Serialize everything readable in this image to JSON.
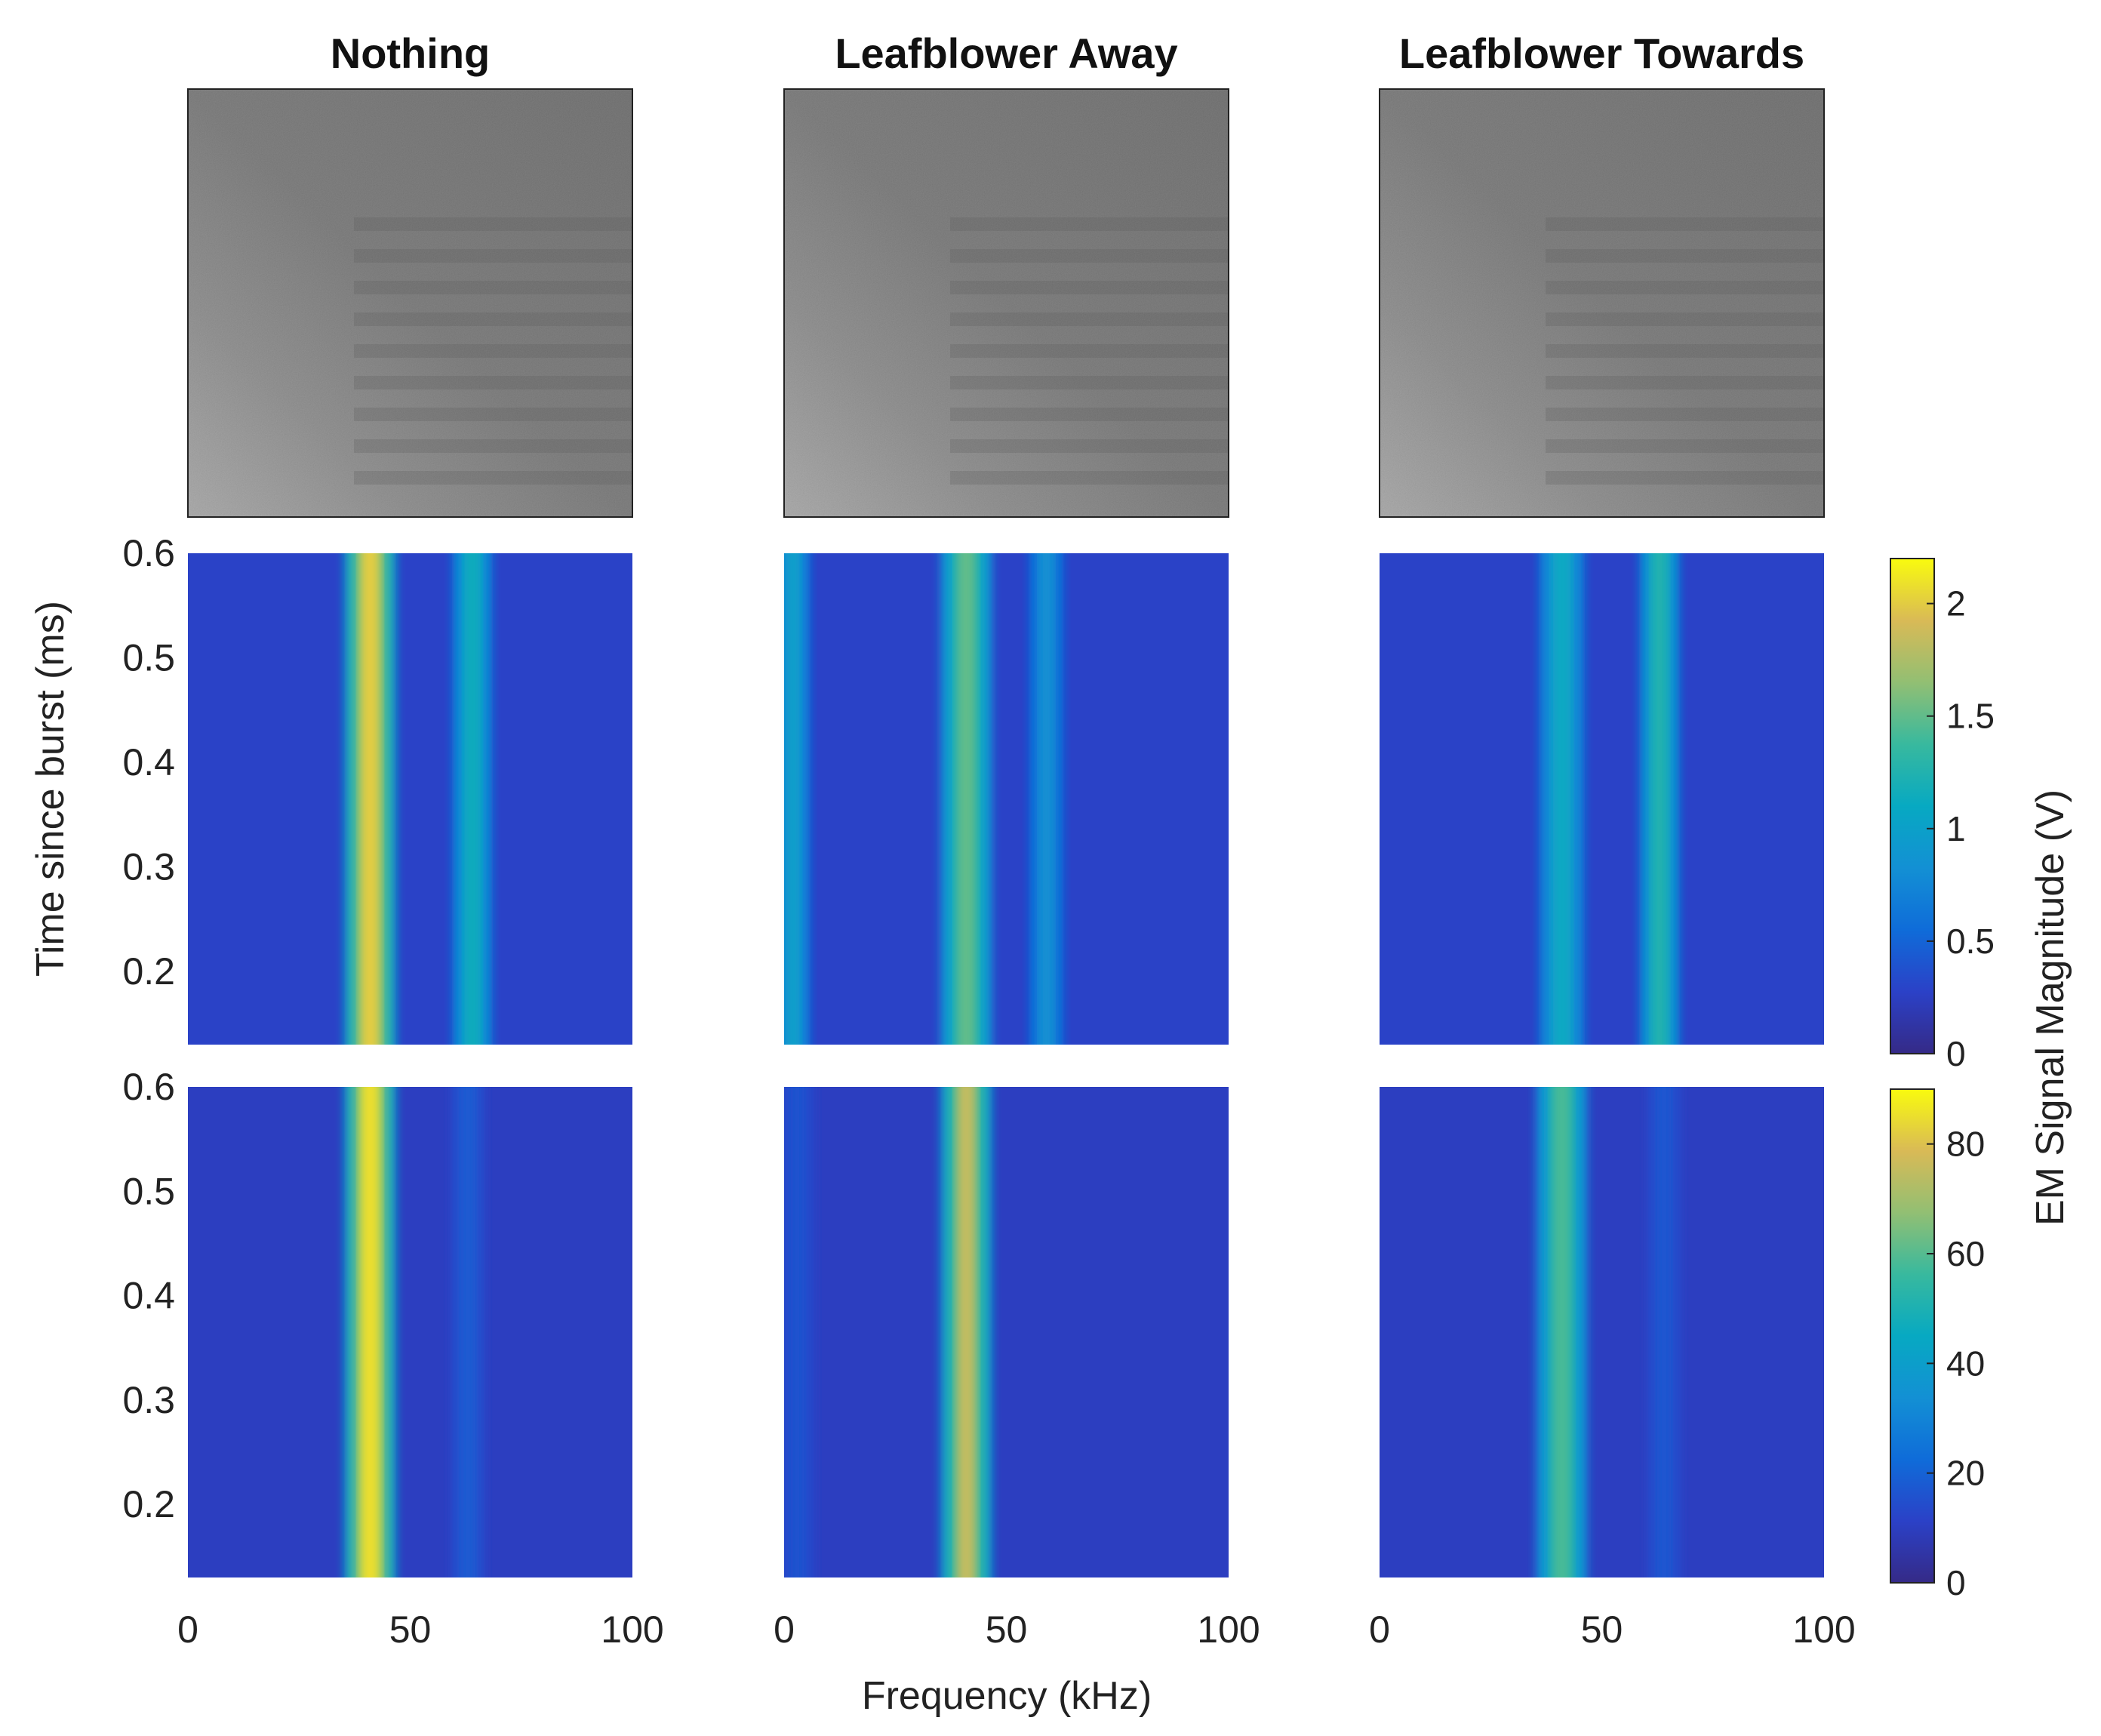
{
  "chart_data": {
    "type": "heatmap",
    "columns": [
      {
        "title": "Nothing"
      },
      {
        "title": "Leafblower Away"
      },
      {
        "title": "Leafblower Towards"
      }
    ],
    "xlabel": "Frequency (kHz)",
    "ylabel": "Time since burst (ms)",
    "colorbar_label": "EM Signal Magnitude (V)",
    "xlim": [
      0,
      100
    ],
    "ylim": [
      0.13,
      0.6
    ],
    "xticks": [
      "0",
      "50",
      "100"
    ],
    "yticks": [
      "0.6",
      "0.5",
      "0.4",
      "0.3",
      "0.2"
    ],
    "ytick_values": [
      0.6,
      0.5,
      0.4,
      0.3,
      0.2
    ],
    "colormap": "parula",
    "rows": [
      {
        "row": "images",
        "kind": "grayscale-photo"
      },
      {
        "row": "spectrogram-top",
        "clim": [
          0,
          2.2
        ],
        "colorbar_ticks": [
          "0",
          "0.5",
          "1",
          "1.5",
          "2"
        ],
        "colorbar_values": [
          0,
          0.5,
          1,
          1.5,
          2
        ],
        "background_level": 0.28,
        "panels": [
          {
            "column": "Nothing",
            "bands": [
              {
                "freq_khz": 41,
                "width_khz": 4.5,
                "peak": 2.0
              },
              {
                "freq_khz": 64,
                "width_khz": 3.5,
                "peak": 1.15
              }
            ]
          },
          {
            "column": "Leafblower Away",
            "bands": [
              {
                "freq_khz": 2,
                "width_khz": 3,
                "peak": 1.0
              },
              {
                "freq_khz": 41,
                "width_khz": 4.5,
                "peak": 1.5
              },
              {
                "freq_khz": 59,
                "width_khz": 3,
                "peak": 0.85
              }
            ]
          },
          {
            "column": "Leafblower Towards",
            "bands": [
              {
                "freq_khz": 41,
                "width_khz": 4,
                "peak": 1.1
              },
              {
                "freq_khz": 63,
                "width_khz": 3.5,
                "peak": 1.25
              }
            ]
          }
        ]
      },
      {
        "row": "spectrogram-bottom",
        "clim": [
          0,
          90
        ],
        "colorbar_ticks": [
          "0",
          "20",
          "40",
          "60",
          "80"
        ],
        "colorbar_values": [
          0,
          20,
          40,
          60,
          80
        ],
        "background_level": 10,
        "panels": [
          {
            "column": "Nothing",
            "bands": [
              {
                "freq_khz": 41,
                "width_khz": 4.5,
                "peak": 85
              },
              {
                "freq_khz": 63,
                "width_khz": 3,
                "peak": 18
              }
            ]
          },
          {
            "column": "Leafblower Away",
            "bands": [
              {
                "freq_khz": 41,
                "width_khz": 4.5,
                "peak": 75
              },
              {
                "freq_khz": 3,
                "width_khz": 3,
                "peak": 16
              }
            ]
          },
          {
            "column": "Leafblower Towards",
            "bands": [
              {
                "freq_khz": 41,
                "width_khz": 4.5,
                "peak": 58
              },
              {
                "freq_khz": 64,
                "width_khz": 3,
                "peak": 17
              }
            ]
          }
        ]
      }
    ]
  }
}
